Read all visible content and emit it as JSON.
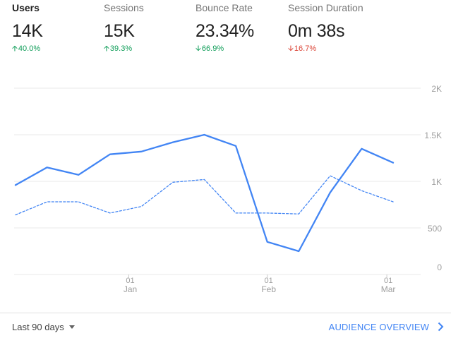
{
  "metrics": [
    {
      "label": "Users",
      "value": "14K",
      "change": "40.0%",
      "direction": "up",
      "active": true
    },
    {
      "label": "Sessions",
      "value": "15K",
      "change": "39.3%",
      "direction": "up",
      "active": false
    },
    {
      "label": "Bounce Rate",
      "value": "23.34%",
      "change": "66.9%",
      "direction": "down",
      "active": false
    },
    {
      "label": "Session Duration",
      "value": "0m 38s",
      "change": "16.7%",
      "direction": "down",
      "active": false
    }
  ],
  "icons": {
    "up": "arrow-up-icon",
    "down": "arrow-down-icon"
  },
  "colors": {
    "accent": "#4285f4",
    "positive": "#0f9d58",
    "negative": "#db4437"
  },
  "chart_data": {
    "type": "line",
    "y_ticks": [
      "0",
      "500",
      "1K",
      "1.5K",
      "2K"
    ],
    "y_tick_values": [
      0,
      500,
      1000,
      1500,
      2000
    ],
    "ylim": [
      0,
      2000
    ],
    "x_ticks": [
      {
        "day": "01",
        "month": "Jan",
        "index": 3.6
      },
      {
        "day": "01",
        "month": "Feb",
        "index": 8
      },
      {
        "day": "01",
        "month": "Mar",
        "index": 11.8
      }
    ],
    "x_count": 13,
    "series": [
      {
        "style": "solid",
        "color": "#4285f4",
        "values": [
          960,
          1150,
          1070,
          1290,
          1320,
          1420,
          1500,
          1380,
          350,
          250,
          880,
          1350,
          1200
        ]
      },
      {
        "style": "dashed",
        "color": "#4285f4",
        "values": [
          640,
          780,
          780,
          660,
          730,
          990,
          1020,
          660,
          660,
          650,
          1060,
          900,
          780
        ]
      }
    ],
    "grid": true
  },
  "footer": {
    "date_range": "Last 90 days",
    "audience_link": "AUDIENCE OVERVIEW"
  }
}
